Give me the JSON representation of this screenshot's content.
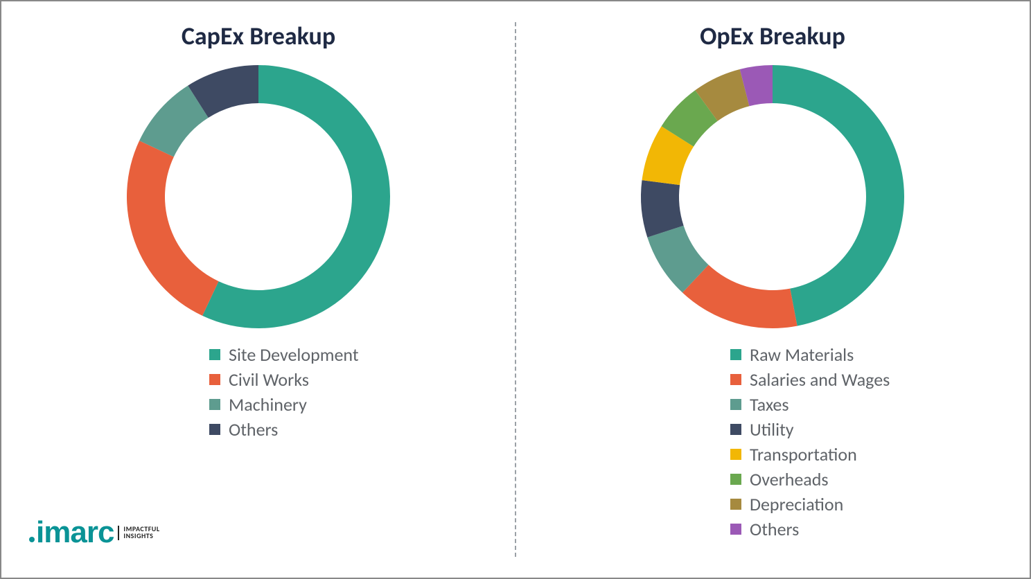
{
  "background_color": "#ffffff",
  "divider_color": "#9aa0a6",
  "legend_text_color": "#5f6368",
  "title_color": "#1f2a44",
  "title_fontsize": 36,
  "legend_fontsize": 26,
  "donut": {
    "outer_radius": 190,
    "inner_radius": 135,
    "start_angle_deg": 0
  },
  "capex": {
    "title": "CapEx Breakup",
    "type": "donut",
    "series": [
      {
        "label": "Site Development",
        "value": 57,
        "color": "#2ca58d"
      },
      {
        "label": "Civil Works",
        "value": 25,
        "color": "#e8603c"
      },
      {
        "label": "Machinery",
        "value": 9,
        "color": "#5e9c8f"
      },
      {
        "label": "Others",
        "value": 9,
        "color": "#3e4a63"
      }
    ]
  },
  "opex": {
    "title": "OpEx Breakup",
    "type": "donut",
    "series": [
      {
        "label": "Raw Materials",
        "value": 47,
        "color": "#2ca58d"
      },
      {
        "label": "Salaries and Wages",
        "value": 15,
        "color": "#e8603c"
      },
      {
        "label": "Taxes",
        "value": 8,
        "color": "#5e9c8f"
      },
      {
        "label": "Utility",
        "value": 7,
        "color": "#3e4a63"
      },
      {
        "label": "Transportation",
        "value": 7,
        "color": "#f2b705"
      },
      {
        "label": "Overheads",
        "value": 6,
        "color": "#6aa84f"
      },
      {
        "label": "Depreciation",
        "value": 6,
        "color": "#a68a3f"
      },
      {
        "label": "Others",
        "value": 4,
        "color": "#9b59b6"
      }
    ]
  },
  "logo": {
    "brand": "imarc",
    "brand_color": "#0a9396",
    "tag_line1": "IMPACTFUL",
    "tag_line2": "INSIGHTS"
  }
}
